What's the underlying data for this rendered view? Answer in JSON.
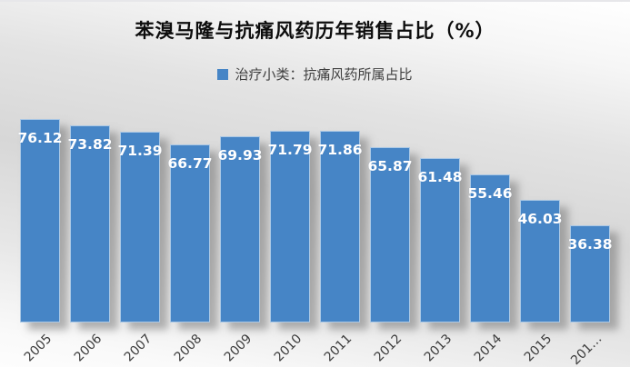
{
  "title": "苯溴马隆与抗痛风药历年销售占比（%）",
  "legend": {
    "label": "治疗小类：抗痛风药所属占比",
    "marker_color": "#4685c6"
  },
  "chart_data": {
    "type": "bar",
    "title": "苯溴马隆与抗痛风药历年销售占比（%）",
    "series_name": "治疗小类：抗痛风药所属占比",
    "categories": [
      "2005",
      "2006",
      "2007",
      "2008",
      "2009",
      "2010",
      "2011",
      "2012",
      "2013",
      "2014",
      "2015",
      "201…"
    ],
    "values": [
      76.12,
      73.82,
      71.39,
      66.77,
      69.93,
      71.79,
      71.86,
      65.87,
      61.48,
      55.46,
      46.03,
      36.38
    ],
    "xlabel": "",
    "ylabel": "",
    "ylim": [
      0,
      80
    ],
    "grid": false,
    "y_axis_visible": false,
    "data_labels": true,
    "data_label_position": "inside-top",
    "x_label_rotation": 45,
    "legend_position": "top",
    "bar_color": "#4685c6",
    "data_label_color": "#ffffff",
    "x_label_color": "#3c3c3c"
  },
  "colors": {
    "bar": "#4685c6",
    "title_text": "#0d0d0d",
    "legend_text": "#3f3f3f",
    "background_light": "#ffffff",
    "background_gray": "#d7d7d7"
  }
}
